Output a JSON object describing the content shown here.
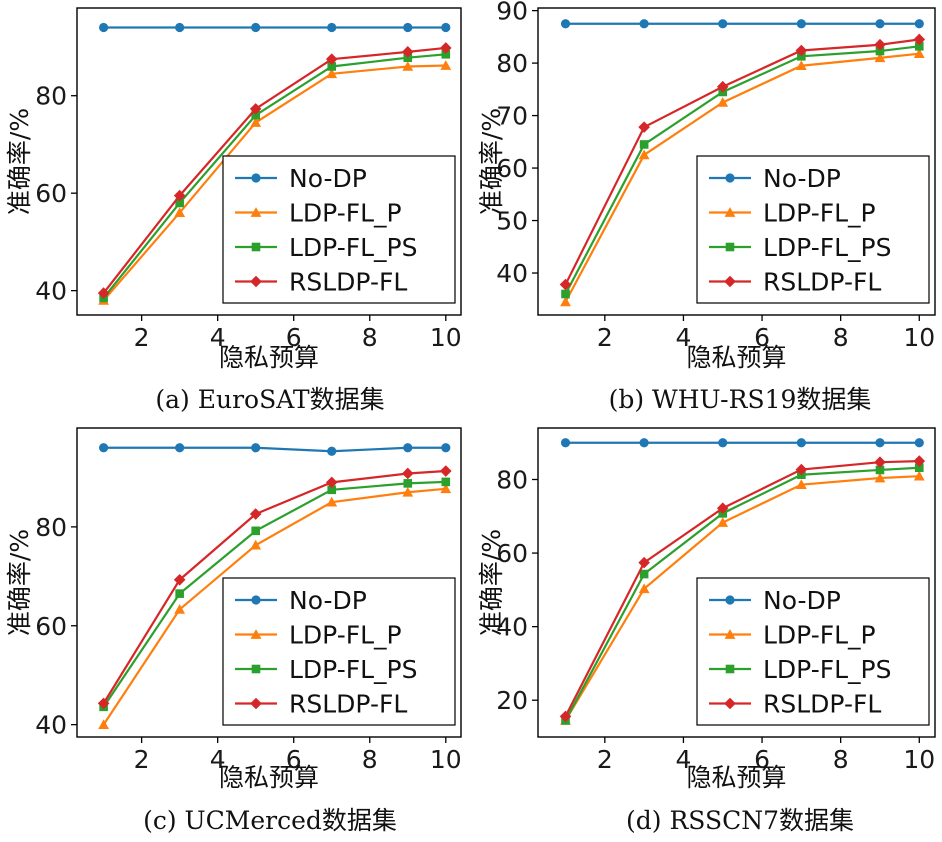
{
  "colors": {
    "No-DP": "#1f77b4",
    "LDP-FL_P": "#ff7f0e",
    "LDP-FL_PS": "#2ca02c",
    "RSLDP-FL": "#d62728"
  },
  "legend_order": [
    "No-DP",
    "LDP-FL_P",
    "LDP-FL_PS",
    "RSLDP-FL"
  ],
  "markers": {
    "No-DP": "circle",
    "LDP-FL_P": "triangle",
    "LDP-FL_PS": "square",
    "RSLDP-FL": "diamond"
  },
  "chart_data": [
    {
      "type": "line",
      "caption": "(a) EuroSAT数据集",
      "xlabel": "隐私预算",
      "ylabel": "准确率/%",
      "x": [
        1,
        3,
        5,
        7,
        9,
        10
      ],
      "xlim": [
        0.3,
        10.4
      ],
      "ylim": [
        35,
        98
      ],
      "xticks": [
        2,
        4,
        6,
        8,
        10
      ],
      "yticks": [
        40,
        60,
        80
      ],
      "legend_position": "lower-right",
      "series": [
        {
          "name": "No-DP",
          "values": [
            94,
            94,
            94,
            94,
            94,
            94
          ]
        },
        {
          "name": "LDP-FL_P",
          "values": [
            38,
            56,
            74.5,
            84.5,
            86,
            86.2
          ]
        },
        {
          "name": "LDP-FL_PS",
          "values": [
            38.5,
            58,
            76,
            86,
            87.8,
            88.5
          ]
        },
        {
          "name": "RSLDP-FL",
          "values": [
            39.5,
            59.5,
            77.3,
            87.5,
            89,
            89.8
          ]
        }
      ]
    },
    {
      "type": "line",
      "caption": "(b) WHU-RS19数据集",
      "xlabel": "隐私预算",
      "ylabel": "准确率/%",
      "x": [
        1,
        3,
        5,
        7,
        9,
        10
      ],
      "xlim": [
        0.3,
        10.4
      ],
      "ylim": [
        32,
        90.5
      ],
      "xticks": [
        2,
        4,
        6,
        8,
        10
      ],
      "yticks": [
        40,
        50,
        60,
        70,
        80,
        90
      ],
      "legend_position": "lower-right",
      "series": [
        {
          "name": "No-DP",
          "values": [
            87.5,
            87.5,
            87.5,
            87.5,
            87.5,
            87.5
          ]
        },
        {
          "name": "LDP-FL_P",
          "values": [
            34.5,
            62.5,
            72.5,
            79.5,
            81,
            81.8
          ]
        },
        {
          "name": "LDP-FL_PS",
          "values": [
            36,
            64.5,
            74.5,
            81.3,
            82.3,
            83.2
          ]
        },
        {
          "name": "RSLDP-FL",
          "values": [
            37.8,
            67.8,
            75.5,
            82.4,
            83.5,
            84.5
          ]
        }
      ]
    },
    {
      "type": "line",
      "caption": "(c) UCMerced数据集",
      "xlabel": "隐私预算",
      "ylabel": "准确率/%",
      "x": [
        1,
        3,
        5,
        7,
        9,
        10
      ],
      "xlim": [
        0.3,
        10.4
      ],
      "ylim": [
        37.5,
        100
      ],
      "xticks": [
        2,
        4,
        6,
        8,
        10
      ],
      "yticks": [
        40,
        60,
        80
      ],
      "legend_position": "lower-right",
      "series": [
        {
          "name": "No-DP",
          "values": [
            96,
            96,
            96,
            95.3,
            96,
            96
          ]
        },
        {
          "name": "LDP-FL_P",
          "values": [
            40,
            63.3,
            76.3,
            85,
            87,
            87.7
          ]
        },
        {
          "name": "LDP-FL_PS",
          "values": [
            43.6,
            66.5,
            79.2,
            87.5,
            88.8,
            89.1
          ]
        },
        {
          "name": "RSLDP-FL",
          "values": [
            44.3,
            69.3,
            82.6,
            89,
            90.8,
            91.3
          ]
        }
      ]
    },
    {
      "type": "line",
      "caption": "(d) RSSCN7数据集",
      "xlabel": "隐私预算",
      "ylabel": "准确率/%",
      "x": [
        1,
        3,
        5,
        7,
        9,
        10
      ],
      "xlim": [
        0.3,
        10.4
      ],
      "ylim": [
        10,
        94
      ],
      "xticks": [
        2,
        4,
        6,
        8,
        10
      ],
      "yticks": [
        20,
        40,
        60,
        80
      ],
      "legend_position": "lower-right",
      "series": [
        {
          "name": "No-DP",
          "values": [
            90,
            90,
            90,
            90,
            90,
            90
          ]
        },
        {
          "name": "LDP-FL_P",
          "values": [
            14.5,
            50.3,
            68.3,
            78.6,
            80.4,
            80.9
          ]
        },
        {
          "name": "LDP-FL_PS",
          "values": [
            14.5,
            54.3,
            70.8,
            81.3,
            82.6,
            83.2
          ]
        },
        {
          "name": "RSLDP-FL",
          "values": [
            15.6,
            57.4,
            72.2,
            82.7,
            84.7,
            85.0
          ]
        }
      ]
    }
  ]
}
